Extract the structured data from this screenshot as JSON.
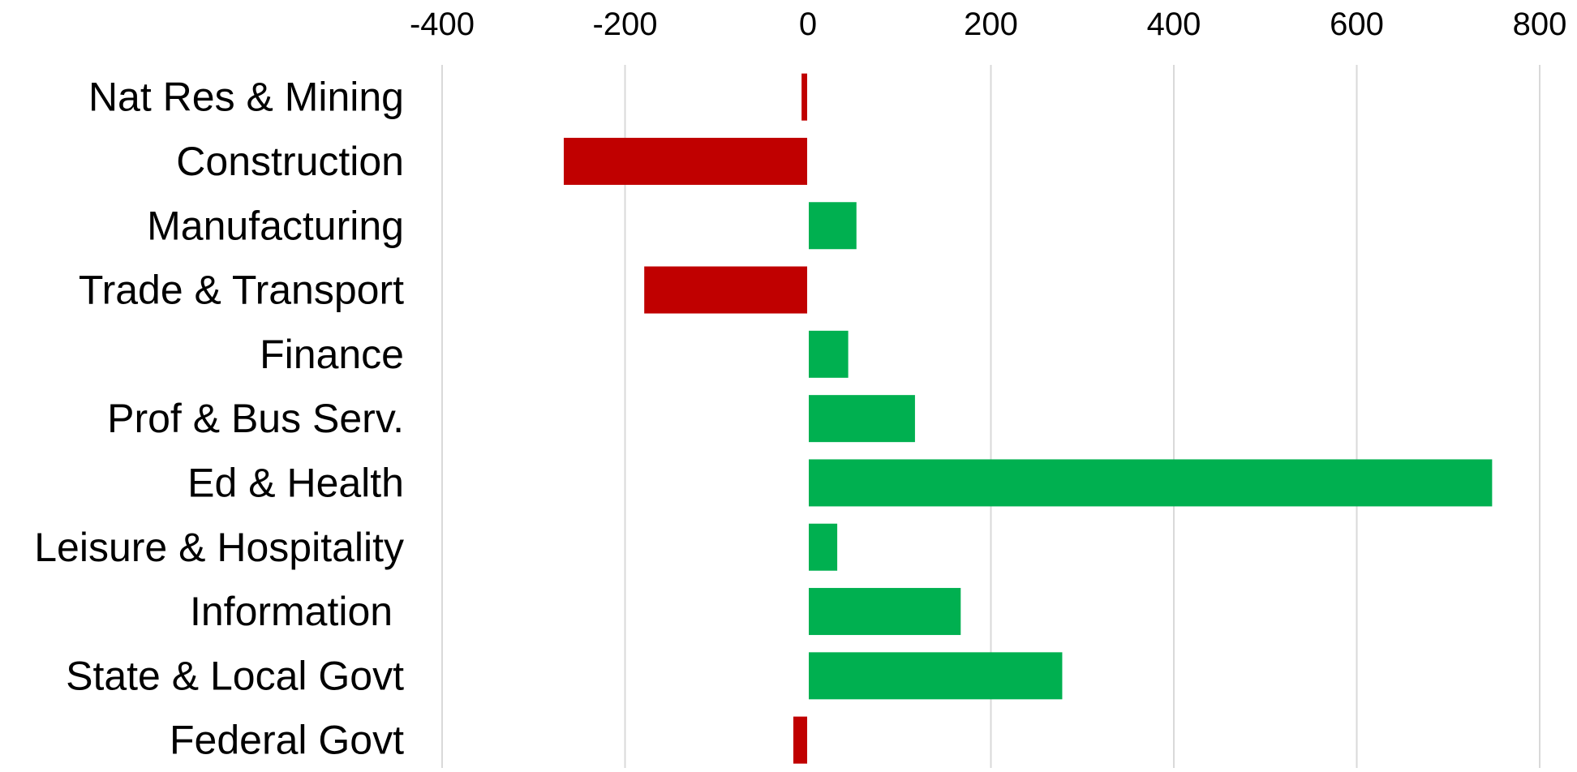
{
  "chart_data": {
    "type": "bar",
    "orientation": "horizontal",
    "title": "",
    "xlabel": "",
    "ylabel": "",
    "categories": [
      "Nat Res & Mining",
      "Construction",
      "Manufacturing",
      "Trade & Transport",
      "Finance",
      "Prof & Bus Serv.",
      "Ed & Health",
      "Leisure & Hospitality",
      "Information ",
      "State & Local Govt",
      "Federal Govt"
    ],
    "values": [
      -7,
      -267,
      53,
      -179,
      44,
      117,
      748,
      32,
      167,
      278,
      -16
    ],
    "xlim": [
      -400,
      800
    ],
    "xticks": [
      "-400",
      "-200",
      "0",
      "200",
      "400",
      "600",
      "800"
    ],
    "axis_position": "top",
    "grid": true,
    "legend": "none",
    "colors": {
      "positive": "#00b050",
      "negative": "#c00000",
      "grid": "#d9d9d9",
      "zero_line": "#ffffff"
    }
  }
}
